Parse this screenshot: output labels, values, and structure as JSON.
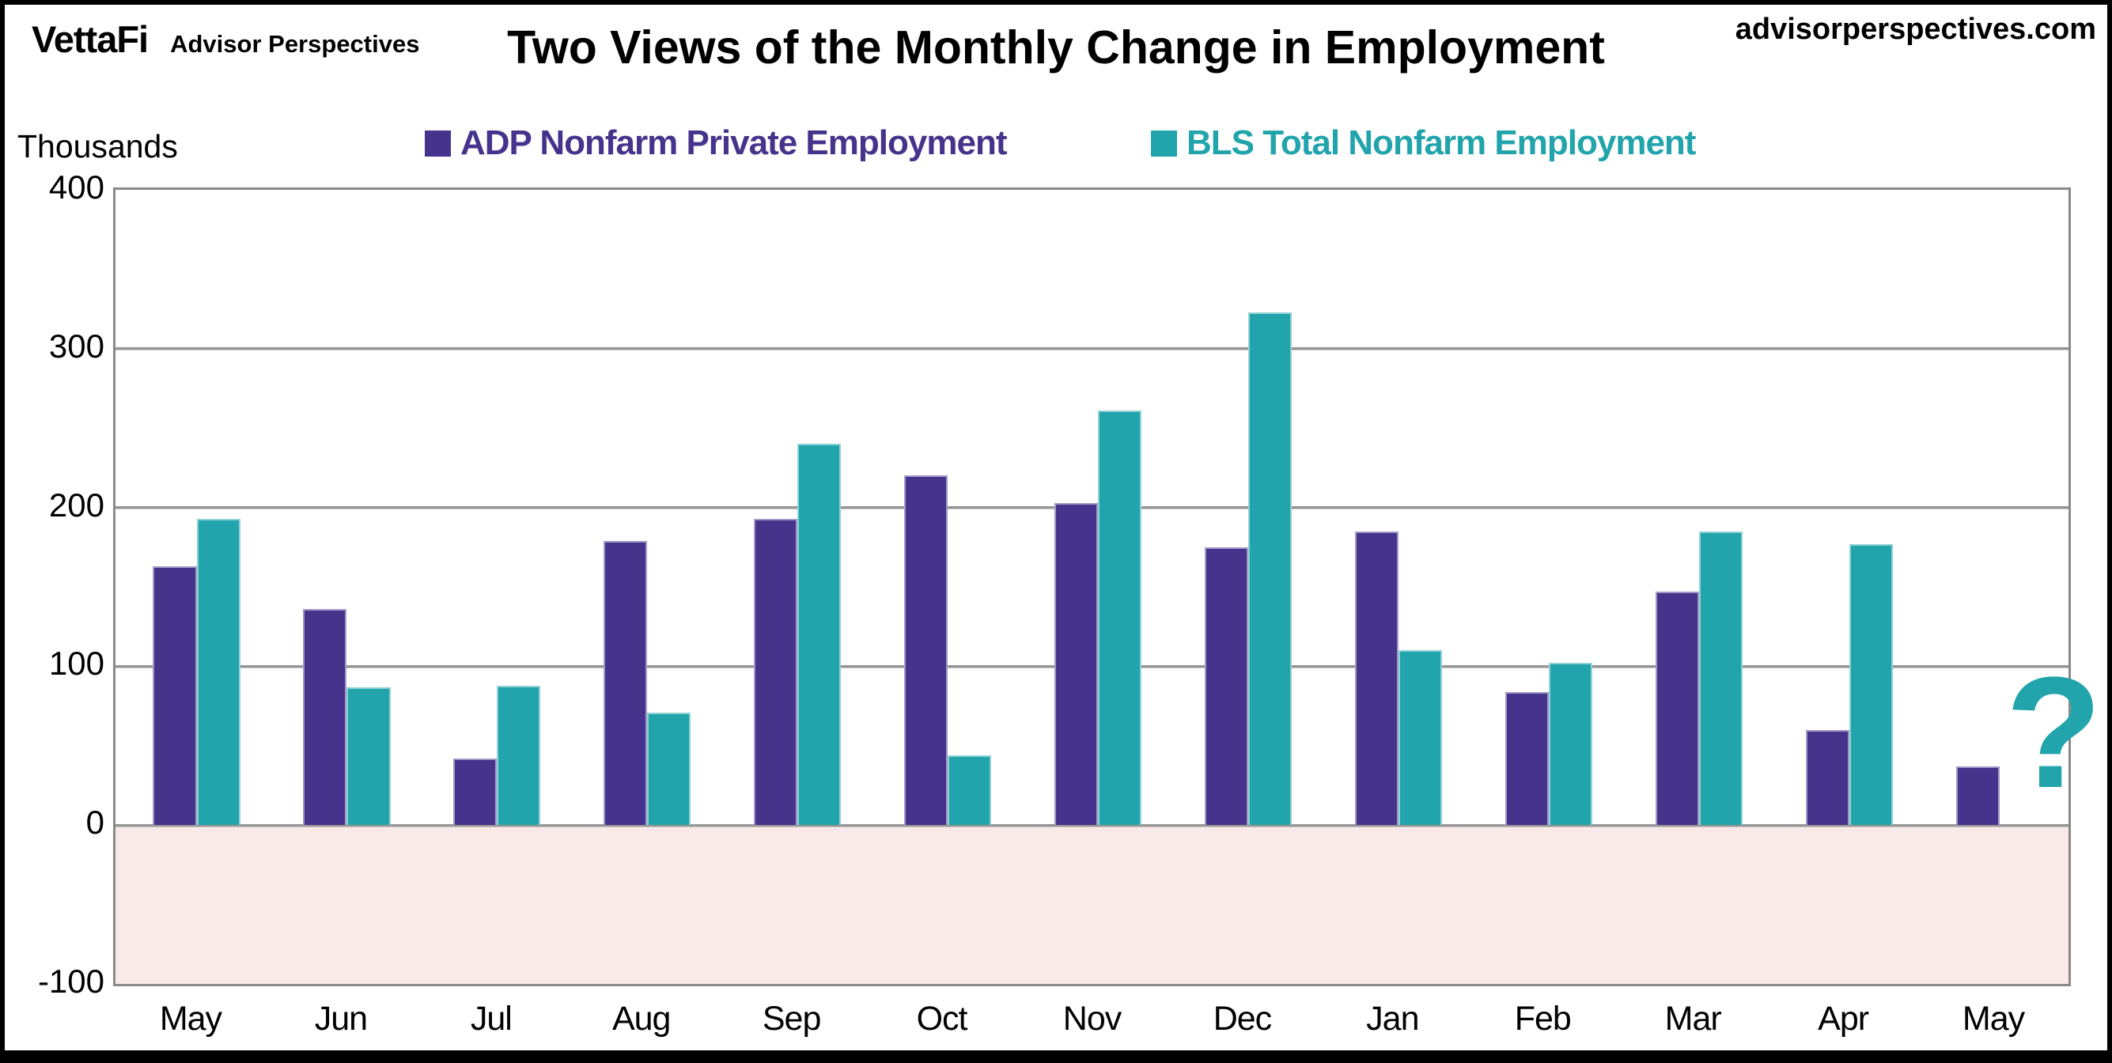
{
  "header": {
    "logo_primary": "VettaFi",
    "logo_secondary": "Advisor Perspectives",
    "site_url": "advisorperspectives.com"
  },
  "chart_data": {
    "type": "bar",
    "title": "Two Views of the Monthly Change in Employment",
    "unit_label": "Thousands",
    "categories": [
      "May",
      "Jun",
      "Jul",
      "Aug",
      "Sep",
      "Oct",
      "Nov",
      "Dec",
      "Jan",
      "Feb",
      "Mar",
      "Apr",
      "May"
    ],
    "series": [
      {
        "name": "ADP Nonfarm Private Employment",
        "color": "#46338c",
        "values": [
          163,
          136,
          42,
          179,
          193,
          220,
          203,
          175,
          185,
          84,
          147,
          60,
          37
        ]
      },
      {
        "name": "BLS Total Nonfarm Employment",
        "color": "#21a4ab",
        "values": [
          193,
          87,
          88,
          71,
          240,
          44,
          261,
          323,
          110,
          102,
          185,
          177,
          null
        ]
      }
    ],
    "missing_value_marker": "?",
    "y_axis": {
      "min": -100,
      "max": 400,
      "tick_interval": 100,
      "ticks": [
        400,
        300,
        200,
        100,
        0,
        -100
      ]
    },
    "negative_region_color": "#fae9e9",
    "grid": true,
    "legend_position": "top"
  }
}
